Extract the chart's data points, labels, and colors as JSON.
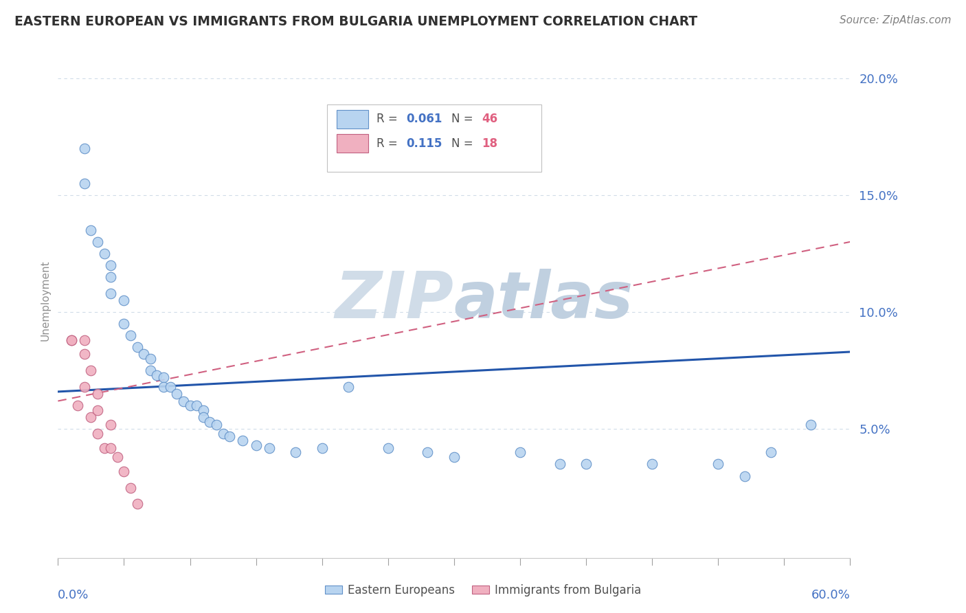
{
  "title": "EASTERN EUROPEAN VS IMMIGRANTS FROM BULGARIA UNEMPLOYMENT CORRELATION CHART",
  "source": "Source: ZipAtlas.com",
  "ylabel": "Unemployment",
  "xlim": [
    0.0,
    0.6
  ],
  "ylim": [
    -0.005,
    0.215
  ],
  "yticks": [
    0.05,
    0.1,
    0.15,
    0.2
  ],
  "ytick_labels": [
    "5.0%",
    "10.0%",
    "15.0%",
    "20.0%"
  ],
  "eastern_europeans": {
    "color": "#b8d4f0",
    "edge_color": "#6090c8",
    "x": [
      0.02,
      0.02,
      0.025,
      0.03,
      0.035,
      0.04,
      0.04,
      0.04,
      0.05,
      0.05,
      0.055,
      0.06,
      0.065,
      0.07,
      0.07,
      0.075,
      0.08,
      0.08,
      0.085,
      0.09,
      0.095,
      0.1,
      0.105,
      0.11,
      0.11,
      0.115,
      0.12,
      0.125,
      0.13,
      0.14,
      0.15,
      0.16,
      0.18,
      0.2,
      0.22,
      0.25,
      0.28,
      0.3,
      0.35,
      0.38,
      0.4,
      0.45,
      0.5,
      0.52,
      0.54,
      0.57
    ],
    "y": [
      0.17,
      0.155,
      0.135,
      0.13,
      0.125,
      0.12,
      0.115,
      0.108,
      0.105,
      0.095,
      0.09,
      0.085,
      0.082,
      0.08,
      0.075,
      0.073,
      0.072,
      0.068,
      0.068,
      0.065,
      0.062,
      0.06,
      0.06,
      0.058,
      0.055,
      0.053,
      0.052,
      0.048,
      0.047,
      0.045,
      0.043,
      0.042,
      0.04,
      0.042,
      0.068,
      0.042,
      0.04,
      0.038,
      0.04,
      0.035,
      0.035,
      0.035,
      0.035,
      0.03,
      0.04,
      0.052
    ],
    "trend_x": [
      0.0,
      0.6
    ],
    "trend_y": [
      0.066,
      0.083
    ],
    "trend_color": "#2255aa",
    "trend_lw": 2.2
  },
  "bulgaria_immigrants": {
    "color": "#f0b0c0",
    "edge_color": "#c06080",
    "x": [
      0.01,
      0.01,
      0.015,
      0.02,
      0.02,
      0.02,
      0.025,
      0.025,
      0.03,
      0.03,
      0.03,
      0.035,
      0.04,
      0.04,
      0.045,
      0.05,
      0.055,
      0.06
    ],
    "y": [
      0.088,
      0.088,
      0.06,
      0.088,
      0.082,
      0.068,
      0.075,
      0.055,
      0.065,
      0.058,
      0.048,
      0.042,
      0.052,
      0.042,
      0.038,
      0.032,
      0.025,
      0.018
    ],
    "trend_x": [
      0.0,
      0.6
    ],
    "trend_y": [
      0.062,
      0.13
    ],
    "trend_color": "#d06080",
    "trend_lw": 1.5
  },
  "watermark_part1": "ZIP",
  "watermark_part2": "atlas",
  "watermark_color1": "#d0dce8",
  "watermark_color2": "#c0d0e0",
  "background_color": "#ffffff",
  "grid_color": "#d0dce8",
  "title_color": "#303030",
  "axis_label_color": "#4472c4",
  "source_color": "#808080",
  "ylabel_color": "#909090"
}
